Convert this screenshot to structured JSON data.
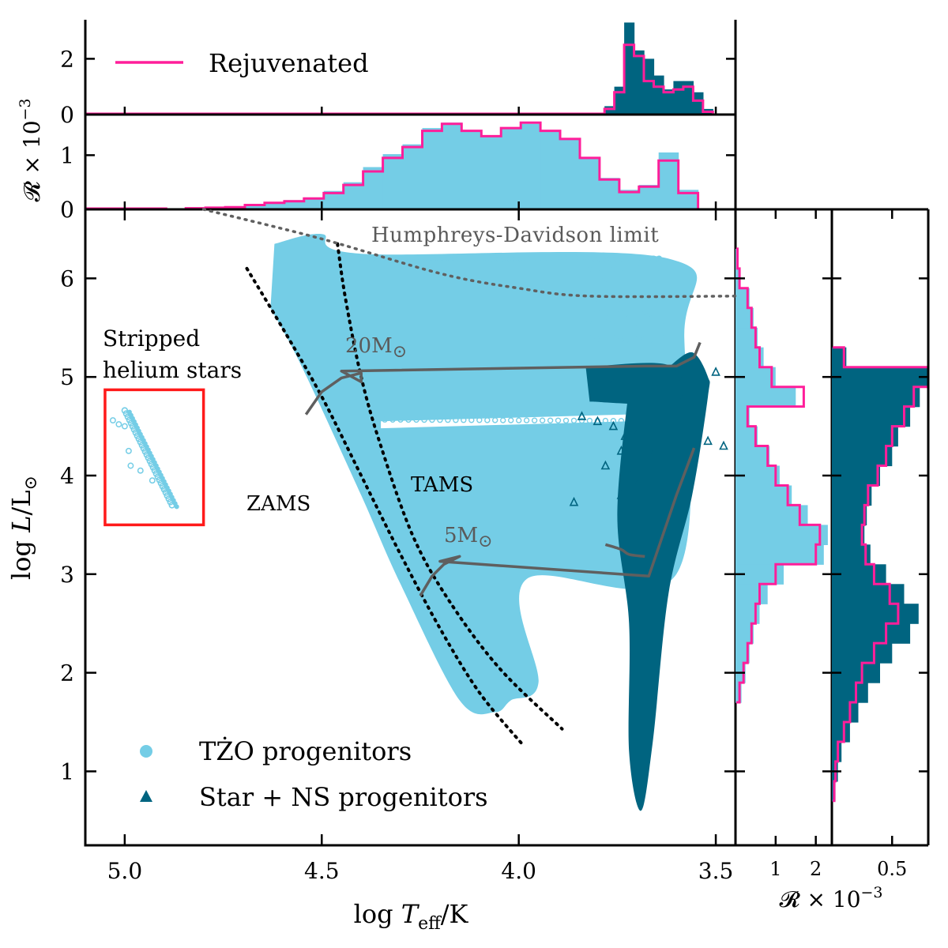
{
  "chart_data": {
    "type": "scatter",
    "title": "",
    "xlabel": "log T_eff/K",
    "ylabel": "log L/L_⊙",
    "xlim": [
      5.1,
      3.45
    ],
    "ylim": [
      0.25,
      6.7
    ],
    "x_ticks": [
      5.0,
      4.5,
      4.0,
      3.5
    ],
    "x_tick_labels": [
      "5.0",
      "4.5",
      "4.0",
      "3.5"
    ],
    "y_ticks": [
      1,
      2,
      3,
      4,
      5,
      6
    ],
    "y_tick_labels": [
      "1",
      "2",
      "3",
      "4",
      "5",
      "6"
    ],
    "colors": {
      "tzo": "#74cde6",
      "star_ns": "#006480",
      "rejuvenated": "#ff1e9a",
      "annotation_box": "#ff1a1a",
      "track": "#5f5f5f"
    },
    "legend": {
      "placement": "lower-left",
      "entries": [
        {
          "name": "TŻO progenitors",
          "marker": "circle",
          "color": "#74cde6"
        },
        {
          "name": "Star + NS progenitors",
          "marker": "triangle",
          "color": "#006480"
        }
      ]
    },
    "annotations": {
      "hd_limit": "Humphreys-Davidson limit",
      "stripped_line1": "Stripped",
      "stripped_line2": "helium stars",
      "zams": "ZAMS",
      "tams": "TAMS",
      "track_20": "20M",
      "track_5": "5M",
      "sun_symbol": "⊙"
    },
    "lines": {
      "hd_limit": [
        [
          4.8,
          6.7
        ],
        [
          4.5,
          6.4
        ],
        [
          4.2,
          6.05
        ],
        [
          4.0,
          5.9
        ],
        [
          3.82,
          5.82
        ],
        [
          3.45,
          5.82
        ]
      ],
      "zams": [
        [
          4.69,
          6.1
        ],
        [
          4.6,
          5.5
        ],
        [
          4.5,
          4.8
        ],
        [
          4.4,
          4.0
        ],
        [
          4.3,
          3.2
        ],
        [
          4.2,
          2.45
        ],
        [
          4.1,
          1.8
        ],
        [
          3.99,
          1.27
        ]
      ],
      "tams": [
        [
          4.46,
          6.35
        ],
        [
          4.44,
          5.8
        ],
        [
          4.4,
          5.0
        ],
        [
          4.35,
          4.3
        ],
        [
          4.27,
          3.4
        ],
        [
          4.18,
          2.75
        ],
        [
          4.05,
          2.05
        ],
        [
          3.89,
          1.43
        ]
      ],
      "track_20": [
        [
          4.54,
          4.62
        ],
        [
          4.5,
          4.85
        ],
        [
          4.45,
          4.99
        ],
        [
          4.4,
          5.04
        ],
        [
          4.4,
          4.95
        ],
        [
          4.45,
          5.06
        ],
        [
          3.68,
          5.11
        ],
        [
          3.6,
          5.11
        ],
        [
          3.555,
          5.2
        ],
        [
          3.54,
          5.35
        ]
      ],
      "track_5": [
        [
          4.25,
          2.78
        ],
        [
          4.22,
          2.98
        ],
        [
          4.19,
          3.1
        ],
        [
          4.15,
          3.18
        ],
        [
          4.2,
          3.13
        ],
        [
          3.67,
          2.98
        ],
        [
          3.6,
          3.8
        ],
        [
          3.555,
          4.28
        ]
      ],
      "track_5_loop": [
        [
          3.78,
          3.3
        ],
        [
          3.74,
          3.25
        ],
        [
          3.72,
          3.2
        ],
        [
          3.68,
          3.18
        ]
      ]
    },
    "regions": {
      "tzo_main": [
        [
          4.62,
          6.35
        ],
        [
          4.5,
          6.45
        ],
        [
          4.4,
          6.25
        ],
        [
          3.62,
          6.2
        ],
        [
          3.58,
          5.4
        ],
        [
          3.6,
          3.0
        ],
        [
          3.98,
          2.95
        ],
        [
          3.95,
          1.9
        ],
        [
          4.02,
          1.72
        ],
        [
          4.06,
          1.6
        ],
        [
          4.15,
          1.72
        ],
        [
          4.3,
          2.9
        ],
        [
          4.4,
          3.8
        ],
        [
          4.55,
          5.1
        ],
        [
          4.63,
          5.7
        ]
      ],
      "tzo_gap": [
        [
          4.35,
          4.48
        ],
        [
          3.72,
          4.55
        ],
        [
          3.72,
          4.62
        ],
        [
          4.35,
          4.55
        ]
      ],
      "star_ns_giant_branch": [
        [
          3.72,
          4.9
        ],
        [
          3.75,
          3.6
        ],
        [
          3.72,
          2.5
        ],
        [
          3.72,
          1.2
        ],
        [
          3.69,
          0.6
        ],
        [
          3.66,
          1.3
        ],
        [
          3.62,
          2.8
        ],
        [
          3.56,
          3.8
        ],
        [
          3.52,
          4.8
        ],
        [
          3.52,
          5.0
        ],
        [
          3.56,
          5.25
        ],
        [
          3.62,
          5.1
        ]
      ],
      "star_ns_hg_band": [
        [
          3.83,
          5.1
        ],
        [
          3.62,
          5.12
        ],
        [
          3.6,
          4.75
        ],
        [
          3.82,
          4.75
        ]
      ],
      "stripped_helium": [
        [
          5.0,
          4.66
        ],
        [
          4.88,
          3.7
        ]
      ]
    },
    "annotation_box_range": {
      "x": [
        5.05,
        4.8
      ],
      "y": [
        3.5,
        4.87
      ]
    },
    "hist_top_tzo": {
      "ylabel": "R × 10^−3",
      "ylim": [
        0,
        1.75
      ],
      "y_ticks": [
        0,
        1
      ],
      "x": [
        4.87,
        4.82,
        4.77,
        4.72,
        4.67,
        4.62,
        4.57,
        4.52,
        4.47,
        4.42,
        4.37,
        4.32,
        4.27,
        4.22,
        4.17,
        4.12,
        4.07,
        4.02,
        3.97,
        3.92,
        3.87,
        3.82,
        3.77,
        3.72,
        3.67,
        3.62,
        3.57,
        3.52
      ],
      "rejuvenated": [
        0,
        0.02,
        0.03,
        0.04,
        0.08,
        0.12,
        0.15,
        0.2,
        0.3,
        0.45,
        0.7,
        0.95,
        1.15,
        1.45,
        1.58,
        1.45,
        1.35,
        1.5,
        1.6,
        1.45,
        1.3,
        0.95,
        0.55,
        0.32,
        0.42,
        0.9,
        0.3,
        0
      ],
      "all": [
        0,
        0.02,
        0.03,
        0.05,
        0.09,
        0.13,
        0.17,
        0.22,
        0.34,
        0.5,
        0.78,
        1.02,
        1.2,
        1.5,
        1.6,
        1.45,
        1.35,
        1.5,
        1.58,
        1.45,
        1.32,
        0.96,
        0.58,
        0.36,
        0.45,
        1.05,
        0.36,
        0
      ]
    },
    "hist_top_rejuvenated": {
      "ylabel": "R × 10^−3",
      "ylim": [
        0,
        3.4
      ],
      "y_ticks": [
        0,
        2
      ],
      "legend": "Rejuvenated",
      "x": [
        3.77,
        3.745,
        3.72,
        3.695,
        3.67,
        3.645,
        3.62,
        3.595,
        3.57,
        3.545,
        3.52
      ],
      "rejuvenated": [
        0.2,
        0.8,
        2.5,
        2.1,
        1.2,
        1.0,
        0.8,
        0.9,
        1.0,
        0.5,
        0.1
      ],
      "all": [
        0.3,
        1.0,
        3.3,
        2.3,
        2.0,
        1.4,
        0.9,
        1.2,
        1.2,
        0.8,
        0.2
      ]
    },
    "hist_right_tzo": {
      "xlabel": "R × 10^−3",
      "xlim": [
        0,
        2.4
      ],
      "x_ticks": [
        1,
        2
      ],
      "y": [
        1.8,
        2.0,
        2.2,
        2.4,
        2.6,
        2.8,
        3.0,
        3.2,
        3.4,
        3.6,
        3.8,
        4.0,
        4.2,
        4.4,
        4.6,
        4.8,
        5.0,
        5.2,
        5.4,
        5.6,
        5.8,
        6.0,
        6.2
      ],
      "rejuvenated": [
        0.1,
        0.2,
        0.3,
        0.4,
        0.5,
        0.6,
        1.0,
        2.0,
        2.1,
        1.6,
        1.3,
        1.0,
        0.8,
        0.5,
        0.3,
        1.7,
        0.9,
        0.6,
        0.5,
        0.4,
        0.3,
        0.1,
        0.05
      ],
      "all": [
        0.15,
        0.25,
        0.35,
        0.45,
        0.6,
        0.8,
        1.2,
        2.2,
        2.3,
        1.8,
        1.4,
        1.1,
        0.85,
        0.55,
        0.35,
        1.5,
        1.0,
        0.7,
        0.55,
        0.45,
        0.35,
        0.12,
        0.06
      ]
    },
    "hist_right_star_ns": {
      "xlabel": "R × 10^−3",
      "xlim": [
        0,
        0.8
      ],
      "x_ticks": [
        0.5
      ],
      "x_tick_labels": [
        "0.5"
      ],
      "y": [
        0.8,
        1.0,
        1.2,
        1.4,
        1.6,
        1.8,
        2.0,
        2.2,
        2.4,
        2.6,
        2.8,
        3.0,
        3.2,
        3.4,
        3.6,
        3.8,
        4.0,
        4.2,
        4.4,
        4.6,
        4.8,
        5.0,
        5.2
      ],
      "rejuvenated": [
        0.02,
        0.03,
        0.05,
        0.1,
        0.15,
        0.2,
        0.25,
        0.35,
        0.45,
        0.55,
        0.48,
        0.35,
        0.28,
        0.25,
        0.27,
        0.3,
        0.38,
        0.45,
        0.5,
        0.6,
        0.68,
        0.8,
        0.1
      ],
      "all": [
        0.03,
        0.05,
        0.08,
        0.15,
        0.22,
        0.3,
        0.4,
        0.5,
        0.65,
        0.72,
        0.6,
        0.45,
        0.32,
        0.27,
        0.29,
        0.33,
        0.4,
        0.5,
        0.55,
        0.65,
        0.73,
        0.83,
        0.12
      ]
    }
  }
}
